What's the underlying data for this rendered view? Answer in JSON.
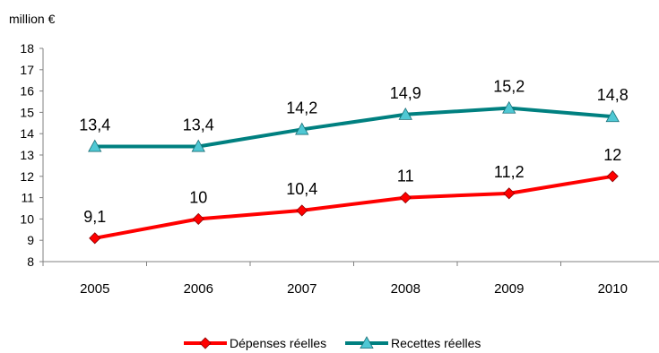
{
  "chart_data": {
    "type": "line",
    "unit_label": "million €",
    "categories": [
      "2005",
      "2006",
      "2007",
      "2008",
      "2009",
      "2010"
    ],
    "ylim": [
      8,
      18
    ],
    "yticks": [
      8,
      9,
      10,
      11,
      12,
      13,
      14,
      15,
      16,
      17,
      18
    ],
    "grid": false,
    "legend_position": "bottom",
    "series": [
      {
        "name": "Dépenses réelles",
        "values": [
          9.1,
          10,
          10.4,
          11,
          11.2,
          12
        ],
        "labels": [
          "9,1",
          "10",
          "10,4",
          "11",
          "11,2",
          "12"
        ],
        "color": "#ff0000",
        "marker": "diamond"
      },
      {
        "name": "Recettes réelles",
        "values": [
          13.4,
          13.4,
          14.2,
          14.9,
          15.2,
          14.8
        ],
        "labels": [
          "13,4",
          "13,4",
          "14,2",
          "14,9",
          "15,2",
          "14,8"
        ],
        "color": "#008080",
        "marker": "triangle"
      }
    ]
  }
}
